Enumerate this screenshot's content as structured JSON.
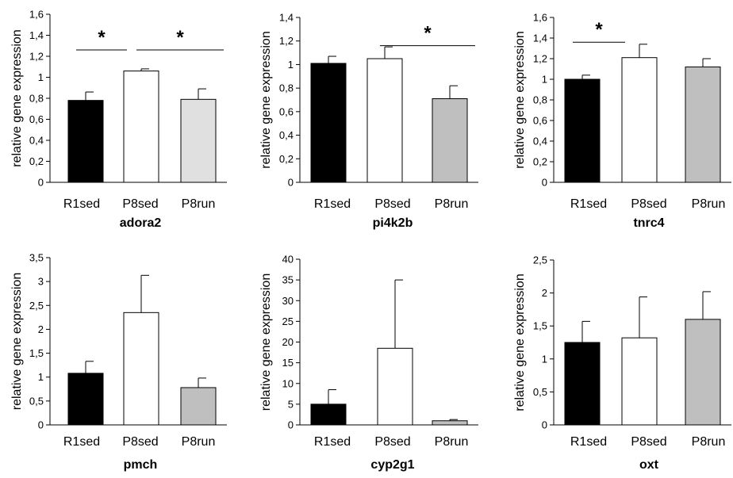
{
  "chart_data": [
    {
      "type": "bar",
      "title": "adora2",
      "ylabel": "relative gene expression",
      "categories": [
        "R1sed",
        "P8sed",
        "P8run"
      ],
      "values": [
        0.78,
        1.06,
        0.79
      ],
      "errors": [
        0.08,
        0.02,
        0.1
      ],
      "ylim": [
        0,
        1.6
      ],
      "yticks": [
        0,
        0.2,
        0.4,
        0.6,
        0.8,
        1,
        1.2,
        1.4,
        1.6
      ],
      "ytick_labels": [
        "0",
        "0,2",
        "0,4",
        "0,6",
        "0,8",
        "1",
        "1,2",
        "1,4",
        "1,6"
      ],
      "colors": [
        "#000000",
        "#ffffff",
        "#e0e0e0"
      ],
      "significance": [
        {
          "from": 0,
          "to": 1,
          "y": 1.26,
          "label": "*"
        },
        {
          "from": 1,
          "to": 2,
          "y": 1.26,
          "label": "*"
        }
      ]
    },
    {
      "type": "bar",
      "title": "pi4k2b",
      "ylabel": "relative gene expression",
      "categories": [
        "R1sed",
        "P8sed",
        "P8run"
      ],
      "values": [
        1.01,
        1.05,
        0.71
      ],
      "errors": [
        0.06,
        0.1,
        0.11
      ],
      "ylim": [
        0,
        1.4
      ],
      "yticks": [
        0,
        0.2,
        0.4,
        0.6,
        0.8,
        1,
        1.2,
        1.4
      ],
      "ytick_labels": [
        "0",
        "0,2",
        "0,4",
        "0,6",
        "0,8",
        "1",
        "1,2",
        "1,4"
      ],
      "colors": [
        "#000000",
        "#ffffff",
        "#bfbfbf"
      ],
      "significance": [
        {
          "from": 1,
          "to": 2,
          "y": 1.16,
          "label": "*"
        }
      ]
    },
    {
      "type": "bar",
      "title": "tnrc4",
      "ylabel": "relative gene expression",
      "categories": [
        "R1sed",
        "P8sed",
        "P8run"
      ],
      "values": [
        1.0,
        1.21,
        1.12
      ],
      "errors": [
        0.04,
        0.13,
        0.08
      ],
      "ylim": [
        0,
        1.6
      ],
      "yticks": [
        0,
        0.2,
        0.4,
        0.6,
        0.8,
        1,
        1.2,
        1.4,
        1.6
      ],
      "ytick_labels": [
        "0",
        "0,2",
        "0,4",
        "0,6",
        "0,8",
        "1",
        "1,2",
        "1,4",
        "1,6"
      ],
      "colors": [
        "#000000",
        "#ffffff",
        "#bfbfbf"
      ],
      "significance": [
        {
          "from": 0,
          "to": 1,
          "y": 1.36,
          "label": "*"
        }
      ]
    },
    {
      "type": "bar",
      "title": "pmch",
      "ylabel": "relative gene expression",
      "categories": [
        "R1sed",
        "P8sed",
        "P8run"
      ],
      "values": [
        1.08,
        2.35,
        0.78
      ],
      "errors": [
        0.25,
        0.78,
        0.2
      ],
      "ylim": [
        0,
        3.5
      ],
      "yticks": [
        0,
        0.5,
        1,
        1.5,
        2,
        2.5,
        3,
        3.5
      ],
      "ytick_labels": [
        "0",
        "0,5",
        "1",
        "1,5",
        "2",
        "2,5",
        "3",
        "3,5"
      ],
      "colors": [
        "#000000",
        "#ffffff",
        "#bfbfbf"
      ],
      "significance": []
    },
    {
      "type": "bar",
      "title": "cyp2g1",
      "ylabel": "relative gene expression",
      "categories": [
        "R1sed",
        "P8sed",
        "P8run"
      ],
      "values": [
        5.0,
        18.5,
        1.0
      ],
      "errors": [
        3.5,
        16.5,
        0.3
      ],
      "ylim": [
        0,
        40
      ],
      "yticks": [
        0,
        5,
        10,
        15,
        20,
        25,
        30,
        35,
        40
      ],
      "ytick_labels": [
        "0",
        "5",
        "10",
        "15",
        "20",
        "25",
        "30",
        "35",
        "40"
      ],
      "colors": [
        "#000000",
        "#ffffff",
        "#bfbfbf"
      ],
      "significance": []
    },
    {
      "type": "bar",
      "title": "oxt",
      "ylabel": "relative gene expression",
      "categories": [
        "R1sed",
        "P8sed",
        "P8run"
      ],
      "values": [
        1.25,
        1.32,
        1.6
      ],
      "errors": [
        0.32,
        0.62,
        0.42
      ],
      "ylim": [
        0,
        2.5
      ],
      "yticks": [
        0,
        0.5,
        1,
        1.5,
        2,
        2.5
      ],
      "ytick_labels": [
        "0",
        "0,5",
        "1",
        "1,5",
        "2",
        "2,5"
      ],
      "colors": [
        "#000000",
        "#ffffff",
        "#bfbfbf"
      ],
      "significance": []
    }
  ]
}
